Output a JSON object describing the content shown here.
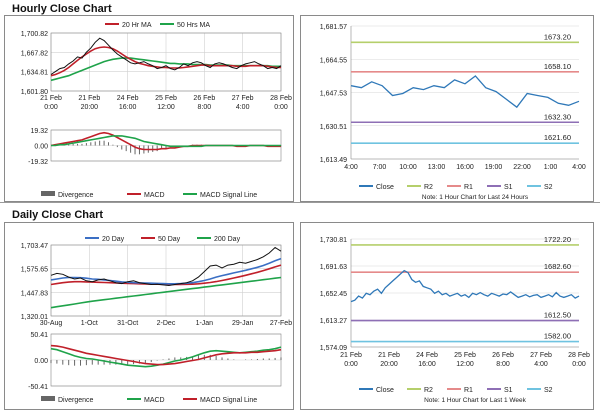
{
  "hourly": {
    "title": "Hourly Close Chart",
    "price_chart": {
      "type": "line",
      "legend": [
        "20 Hr MA",
        "50 Hrs MA"
      ],
      "colors": {
        "close": "#111111",
        "ma20": "#c0202a",
        "ma50": "#1fa34a",
        "grid": "#c8c8c8"
      },
      "ylim": [
        1601.8,
        1700.82
      ],
      "y_ticks": [
        "1,700.82",
        "1,667.82",
        "1,634.81",
        "1,601.80"
      ],
      "x_ticks": [
        [
          "21 Feb",
          "0:00"
        ],
        [
          "21 Feb",
          "20:00"
        ],
        [
          "24 Feb",
          "16:00"
        ],
        [
          "25 Feb",
          "12:00"
        ],
        [
          "26 Feb",
          "8:00"
        ],
        [
          "27 Feb",
          "4:00"
        ],
        [
          "28 Feb",
          "0:00"
        ]
      ],
      "close": [
        1630,
        1635,
        1640,
        1642,
        1648,
        1653,
        1660,
        1658,
        1668,
        1675,
        1685,
        1692,
        1688,
        1680,
        1672,
        1665,
        1660,
        1655,
        1650,
        1648,
        1650,
        1652,
        1648,
        1645,
        1640,
        1642,
        1645,
        1640,
        1638,
        1642,
        1648,
        1645,
        1650,
        1652,
        1650,
        1645,
        1642,
        1648,
        1650,
        1648,
        1645,
        1642,
        1640,
        1645,
        1648,
        1650,
        1652,
        1648,
        1645,
        1640,
        1642,
        1640,
        1645
      ],
      "ma20": [
        1628,
        1630,
        1633,
        1637,
        1642,
        1648,
        1654,
        1660,
        1665,
        1670,
        1674,
        1676,
        1677,
        1676,
        1674,
        1670,
        1665,
        1660,
        1656,
        1652,
        1649,
        1647,
        1645,
        1644,
        1643,
        1642,
        1642,
        1641,
        1641,
        1641,
        1642,
        1643,
        1644,
        1645,
        1646,
        1646,
        1645,
        1645,
        1645,
        1645,
        1645,
        1645,
        1644,
        1644,
        1644,
        1645,
        1645,
        1645,
        1645,
        1644,
        1643,
        1642,
        1642
      ],
      "ma50": [
        1620,
        1622,
        1624,
        1626,
        1628,
        1631,
        1634,
        1637,
        1640,
        1643,
        1646,
        1649,
        1652,
        1654,
        1656,
        1657,
        1658,
        1658,
        1658,
        1657,
        1656,
        1655,
        1654,
        1653,
        1652,
        1651,
        1650,
        1649,
        1649,
        1648,
        1648,
        1648,
        1647,
        1647,
        1647,
        1647,
        1646,
        1646,
        1646,
        1646,
        1646,
        1645,
        1645,
        1645,
        1645,
        1645,
        1645,
        1645,
        1645,
        1645,
        1644,
        1644,
        1644
      ]
    },
    "macd_chart": {
      "type": "line",
      "ylim": [
        -19.32,
        19.32
      ],
      "y_ticks": [
        "19.32",
        "0.00",
        "-19.32"
      ],
      "legend": [
        "Divergence",
        "MACD",
        "MACD Signal Line"
      ],
      "colors": {
        "divergence": "#666666",
        "macd": "#c0202a",
        "signal": "#1fa34a"
      },
      "macd": [
        0,
        1,
        2,
        3,
        4,
        5,
        6,
        7,
        9,
        11,
        13,
        15,
        16,
        15,
        13,
        10,
        7,
        4,
        1,
        -2,
        -4,
        -5,
        -5,
        -5,
        -5,
        -4,
        -4,
        -3,
        -3,
        -2,
        -1,
        -1,
        0,
        0,
        0,
        0,
        0,
        0,
        0,
        0,
        0,
        0,
        -1,
        -1,
        -1,
        0,
        0,
        0,
        0,
        -1,
        -1,
        -1,
        -1
      ],
      "signal": [
        0,
        0,
        1,
        1,
        2,
        3,
        4,
        5,
        6,
        7,
        8,
        9,
        10,
        11,
        12,
        12,
        12,
        11,
        10,
        9,
        7,
        5,
        4,
        3,
        2,
        1,
        0,
        -1,
        -1,
        -1,
        -1,
        -1,
        -1,
        -1,
        -1,
        0,
        0,
        0,
        0,
        0,
        0,
        0,
        0,
        0,
        0,
        0,
        0,
        0,
        0,
        0,
        0,
        0,
        0
      ]
    },
    "intraday": {
      "type": "line",
      "ylim": [
        1613.49,
        1681.57
      ],
      "y_ticks": [
        "1,681.57",
        "1,664.55",
        "1,647.53",
        "1,630.51",
        "1,613.49"
      ],
      "x_ticks": [
        "4:00",
        "7:00",
        "10:00",
        "13:00",
        "16:00",
        "19:00",
        "22:00",
        "1:00",
        "4:00"
      ],
      "levels": [
        {
          "name": "R2",
          "value": 1673.2,
          "label": "1673.20",
          "color": "#b5cf6b"
        },
        {
          "name": "R1",
          "value": 1658.1,
          "label": "1658.10",
          "color": "#e58a8a"
        },
        {
          "name": "S1",
          "value": 1632.3,
          "label": "1632.30",
          "color": "#8e6fb5"
        },
        {
          "name": "S2",
          "value": 1621.6,
          "label": "1621.60",
          "color": "#6fc3e0"
        }
      ],
      "close_color": "#2f78b8",
      "close": [
        1651,
        1650,
        1653,
        1651,
        1646,
        1647,
        1650,
        1649,
        1651,
        1650,
        1654,
        1652,
        1656,
        1650,
        1648,
        1644,
        1640,
        1647,
        1646,
        1645,
        1642,
        1641,
        1643
      ],
      "legend": [
        "Close",
        "R2",
        "R1",
        "S1",
        "S2"
      ],
      "note": "Note: 1 Hour Chart for Last 24 Hours"
    }
  },
  "daily": {
    "title": "Daily Close Chart",
    "price_chart": {
      "type": "line",
      "legend": [
        "20 Day",
        "50 Day",
        "200 Day"
      ],
      "colors": {
        "close": "#111111",
        "ma20": "#3b6fc4",
        "ma50": "#c0202a",
        "ma200": "#1fa34a"
      },
      "ylim": [
        1320.01,
        1703.47
      ],
      "y_ticks": [
        "1,703.47",
        "1,575.65",
        "1,447.83",
        "1,320.01"
      ],
      "x_ticks": [
        "30-Aug",
        "1-Oct",
        "31-Oct",
        "2-Dec",
        "1-Jan",
        "29-Jan",
        "27-Feb"
      ],
      "close": [
        1540,
        1550,
        1545,
        1530,
        1520,
        1525,
        1510,
        1505,
        1515,
        1520,
        1510,
        1500,
        1495,
        1505,
        1510,
        1500,
        1495,
        1490,
        1492,
        1488,
        1485,
        1490,
        1495,
        1500,
        1510,
        1530,
        1560,
        1590,
        1595,
        1580,
        1595,
        1600,
        1610,
        1605,
        1615,
        1625,
        1640,
        1660,
        1690,
        1670
      ],
      "ma20": [
        1515,
        1520,
        1525,
        1528,
        1528,
        1527,
        1524,
        1520,
        1518,
        1515,
        1512,
        1508,
        1504,
        1502,
        1500,
        1499,
        1498,
        1497,
        1496,
        1495,
        1494,
        1494,
        1495,
        1497,
        1500,
        1505,
        1512,
        1520,
        1530,
        1538,
        1545,
        1553,
        1560,
        1567,
        1575,
        1583,
        1593,
        1605,
        1618,
        1630
      ],
      "ma50": [
        1490,
        1495,
        1500,
        1503,
        1505,
        1505,
        1504,
        1503,
        1502,
        1501,
        1500,
        1498,
        1497,
        1496,
        1495,
        1494,
        1493,
        1492,
        1492,
        1491,
        1490,
        1490,
        1490,
        1491,
        1492,
        1494,
        1497,
        1501,
        1506,
        1512,
        1518,
        1525,
        1532,
        1540,
        1548,
        1556,
        1565,
        1575,
        1585,
        1595
      ],
      "ma200": [
        1365,
        1370,
        1375,
        1380,
        1385,
        1390,
        1395,
        1400,
        1404,
        1408,
        1412,
        1416,
        1420,
        1424,
        1428,
        1432,
        1436,
        1440,
        1444,
        1448,
        1452,
        1456,
        1460,
        1464,
        1468,
        1472,
        1476,
        1480,
        1484,
        1488,
        1492,
        1496,
        1500,
        1504,
        1508,
        1512,
        1516,
        1520,
        1524,
        1528
      ]
    },
    "macd_chart": {
      "type": "line",
      "ylim": [
        -50.41,
        50.41
      ],
      "y_ticks": [
        "50.41",
        "0.00",
        "-50.41"
      ],
      "legend": [
        "Divergence",
        "MACD",
        "MACD Signal Line"
      ],
      "colors": {
        "divergence": "#666666",
        "macd": "#1fa34a",
        "signal": "#c0202a"
      },
      "macd": [
        22,
        20,
        16,
        12,
        8,
        5,
        3,
        2,
        0,
        -2,
        -4,
        -6,
        -8,
        -10,
        -11,
        -12,
        -13,
        -12,
        -10,
        -8,
        -5,
        -2,
        0,
        3,
        6,
        10,
        14,
        17,
        18,
        17,
        16,
        15,
        14,
        15,
        16,
        17,
        19,
        20,
        22,
        25
      ],
      "signal": [
        28,
        27,
        25,
        22,
        19,
        16,
        13,
        11,
        9,
        7,
        5,
        3,
        1,
        -1,
        -3,
        -5,
        -7,
        -8,
        -9,
        -9,
        -8,
        -7,
        -5,
        -3,
        -1,
        1,
        4,
        7,
        10,
        12,
        13,
        14,
        14,
        14,
        15,
        15,
        16,
        17,
        18,
        20
      ]
    },
    "intraday": {
      "type": "line",
      "ylim": [
        1574.09,
        1730.81
      ],
      "y_ticks": [
        "1,730.81",
        "1,691.63",
        "1,652.45",
        "1,613.27",
        "1,574.09"
      ],
      "x_ticks": [
        [
          "21 Feb",
          "0:00"
        ],
        [
          "21 Feb",
          "20:00"
        ],
        [
          "24 Feb",
          "16:00"
        ],
        [
          "25 Feb",
          "12:00"
        ],
        [
          "26 Feb",
          "8:00"
        ],
        [
          "27 Feb",
          "4:00"
        ],
        [
          "28 Feb",
          "0:00"
        ]
      ],
      "levels": [
        {
          "name": "R2",
          "value": 1722.2,
          "label": "1722.20",
          "color": "#b5cf6b"
        },
        {
          "name": "R1",
          "value": 1682.6,
          "label": "1682.60",
          "color": "#e58a8a"
        },
        {
          "name": "S1",
          "value": 1612.5,
          "label": "1612.50",
          "color": "#8e6fb5"
        },
        {
          "name": "S2",
          "value": 1582.0,
          "label": "1582.00",
          "color": "#6fc3e0"
        }
      ],
      "close_color": "#2f78b8",
      "close": [
        1640,
        1642,
        1648,
        1645,
        1652,
        1650,
        1655,
        1658,
        1652,
        1660,
        1665,
        1670,
        1675,
        1680,
        1685,
        1682,
        1672,
        1668,
        1670,
        1662,
        1660,
        1658,
        1652,
        1655,
        1650,
        1652,
        1648,
        1650,
        1652,
        1648,
        1650,
        1646,
        1652,
        1650,
        1653,
        1650,
        1648,
        1652,
        1650,
        1648,
        1651,
        1650,
        1654,
        1650,
        1646,
        1648,
        1650,
        1647,
        1649,
        1650,
        1646,
        1648,
        1650,
        1647,
        1653,
        1648,
        1646,
        1648,
        1650,
        1645,
        1648
      ],
      "legend": [
        "Close",
        "R2",
        "R1",
        "S1",
        "S2"
      ],
      "note": "Note: 1 Hour Chart for Last 1 Week"
    }
  }
}
